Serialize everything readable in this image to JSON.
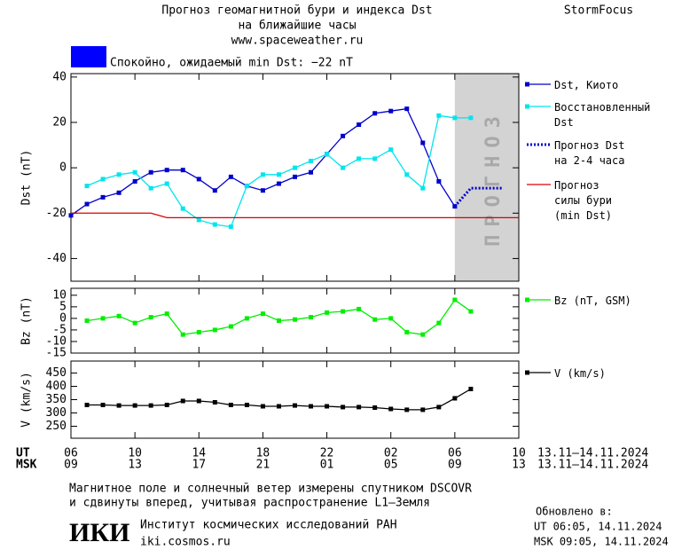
{
  "header": {
    "title": "Прогноз геомагнитной бури и индекса Dst",
    "subtitle": "на ближайшие часы",
    "url": "www.spaceweather.ru",
    "brand": "StormFocus",
    "status": "Спокойно, ожидаемый min Dst: −22 nT"
  },
  "time_axis": {
    "label_ut": "UT",
    "label_msk": "MSK",
    "range_ut": "13.11–14.11.2024",
    "range_msk": "13.11–14.11.2024"
  },
  "chart_data": [
    {
      "type": "line",
      "y_label": "Dst (nT)",
      "xlim": [
        6,
        34
      ],
      "ylim": [
        -50,
        41.5
      ],
      "xticks": [
        {
          "value": 6,
          "label": "06"
        },
        10,
        14,
        18,
        22,
        {
          "value": 26,
          "label": "02"
        },
        {
          "value": 30,
          "label": "06"
        },
        {
          "value": 34,
          "label": "10"
        }
      ],
      "yticks": [
        -40,
        -20,
        0,
        20,
        40
      ],
      "forecast_region": {
        "label": "ПРОГНОЗ",
        "x": [
          30,
          34
        ]
      },
      "x": [
        6,
        7,
        8,
        9,
        10,
        11,
        12,
        13,
        14,
        15,
        16,
        17,
        18,
        19,
        20,
        21,
        22,
        23,
        24,
        25,
        26,
        27,
        28,
        29,
        30,
        31,
        32,
        33,
        34
      ],
      "series": [
        {
          "name": "Dst, Киото",
          "color": "#0000cc",
          "marker": true,
          "dashed": false,
          "values": [
            -21,
            -16,
            -13,
            -11,
            -6,
            -2,
            -1,
            -1,
            -5,
            -10,
            -4,
            -8,
            -10,
            -7,
            -4,
            -2,
            6,
            14,
            19,
            24,
            25,
            26,
            11,
            -6,
            -17,
            null,
            null,
            null,
            null
          ]
        },
        {
          "name": "Восстановленный\nDst",
          "color": "#00e5ee",
          "marker": true,
          "dashed": false,
          "values": [
            null,
            -8,
            -5,
            -3,
            -2,
            -9,
            -7,
            -18,
            -23,
            -25,
            -26,
            -8,
            -3,
            -3,
            0,
            3,
            6,
            0,
            4,
            4,
            8,
            -3,
            -9,
            23,
            22,
            22,
            null,
            null,
            null
          ]
        },
        {
          "name": "Прогноз Dst\nна 2-4 часа",
          "color": "#0000cc",
          "marker": false,
          "dashed": true,
          "values": [
            null,
            null,
            null,
            null,
            null,
            null,
            null,
            null,
            null,
            null,
            null,
            null,
            null,
            null,
            null,
            null,
            null,
            null,
            null,
            null,
            null,
            null,
            null,
            null,
            -17,
            -9,
            -9,
            -9,
            null
          ]
        },
        {
          "name": "Прогноз\nсилы бури\n(min Dst)",
          "color": "#dd0000",
          "marker": false,
          "dashed": false,
          "values": [
            -20,
            -20,
            -20,
            -20,
            -20,
            -20,
            -22,
            -22,
            -22,
            -22,
            -22,
            -22,
            -22,
            -22,
            -22,
            -22,
            -22,
            -22,
            -22,
            -22,
            -22,
            -22,
            -22,
            -22,
            -22,
            -22,
            -22,
            -22,
            -22
          ]
        }
      ]
    },
    {
      "type": "line",
      "y_label": "Bz (nT)",
      "xlim": [
        6,
        34
      ],
      "ylim": [
        -15,
        13
      ],
      "xticks": [
        {
          "value": 6,
          "label": "06"
        },
        10,
        14,
        18,
        22,
        {
          "value": 26,
          "label": "02"
        },
        {
          "value": 30,
          "label": "06"
        },
        {
          "value": 34,
          "label": "10"
        }
      ],
      "yticks": [
        -15,
        -10,
        -5,
        0,
        5,
        10
      ],
      "x": [
        7,
        8,
        9,
        10,
        11,
        12,
        13,
        14,
        15,
        16,
        17,
        18,
        19,
        20,
        21,
        22,
        23,
        24,
        25,
        26,
        27,
        28,
        29,
        30,
        31
      ],
      "series": [
        {
          "name": "Bz (nT, GSM)",
          "color": "#00ee00",
          "marker": true,
          "dashed": false,
          "values": [
            -1,
            0,
            1,
            -2,
            0.5,
            2,
            -7,
            -6,
            -5,
            -3.5,
            0,
            2,
            -1,
            -0.5,
            0.5,
            2.5,
            3,
            4,
            -0.5,
            0,
            -6,
            -7,
            -2,
            8,
            3
          ]
        }
      ]
    },
    {
      "type": "line",
      "y_label": "V (km/s)",
      "xlim": [
        6,
        34
      ],
      "ylim": [
        205,
        495
      ],
      "xticks": [
        {
          "value": 6,
          "label": "06"
        },
        10,
        14,
        18,
        22,
        {
          "value": 26,
          "label": "02"
        },
        {
          "value": 30,
          "label": "06"
        },
        {
          "value": 34,
          "label": "10"
        }
      ],
      "xticks_msk": [
        {
          "value": 6,
          "label": "09"
        },
        {
          "value": 10,
          "label": "13"
        },
        {
          "value": 14,
          "label": "17"
        },
        {
          "value": 18,
          "label": "21"
        },
        {
          "value": 22,
          "label": "01"
        },
        {
          "value": 26,
          "label": "05"
        },
        {
          "value": 30,
          "label": "09"
        },
        {
          "value": 34,
          "label": "13"
        }
      ],
      "yticks": [
        250,
        300,
        350,
        400,
        450
      ],
      "x": [
        7,
        8,
        9,
        10,
        11,
        12,
        13,
        14,
        15,
        16,
        17,
        18,
        19,
        20,
        21,
        22,
        23,
        24,
        25,
        26,
        27,
        28,
        29,
        30,
        31
      ],
      "series": [
        {
          "name": "V (km/s)",
          "color": "#000000",
          "marker": true,
          "dashed": false,
          "values": [
            330,
            330,
            328,
            328,
            328,
            330,
            345,
            345,
            340,
            330,
            330,
            325,
            325,
            328,
            325,
            325,
            322,
            322,
            320,
            315,
            312,
            312,
            322,
            355,
            390
          ]
        }
      ]
    }
  ],
  "footer": {
    "note_1": "Магнитное поле и солнечный ветер измерены спутником DSCOVR",
    "note_2": "и сдвинуты вперед, учитывая распространение L1–Земля",
    "logo": "ИКИ",
    "institute": "Институт космических исследований РАН",
    "institute_url": "iki.cosmos.ru",
    "updated_label": "Обновлено в:",
    "updated_ut": "UT  06:05, 14.11.2024",
    "updated_msk": "MSK 09:05, 14.11.2024"
  }
}
